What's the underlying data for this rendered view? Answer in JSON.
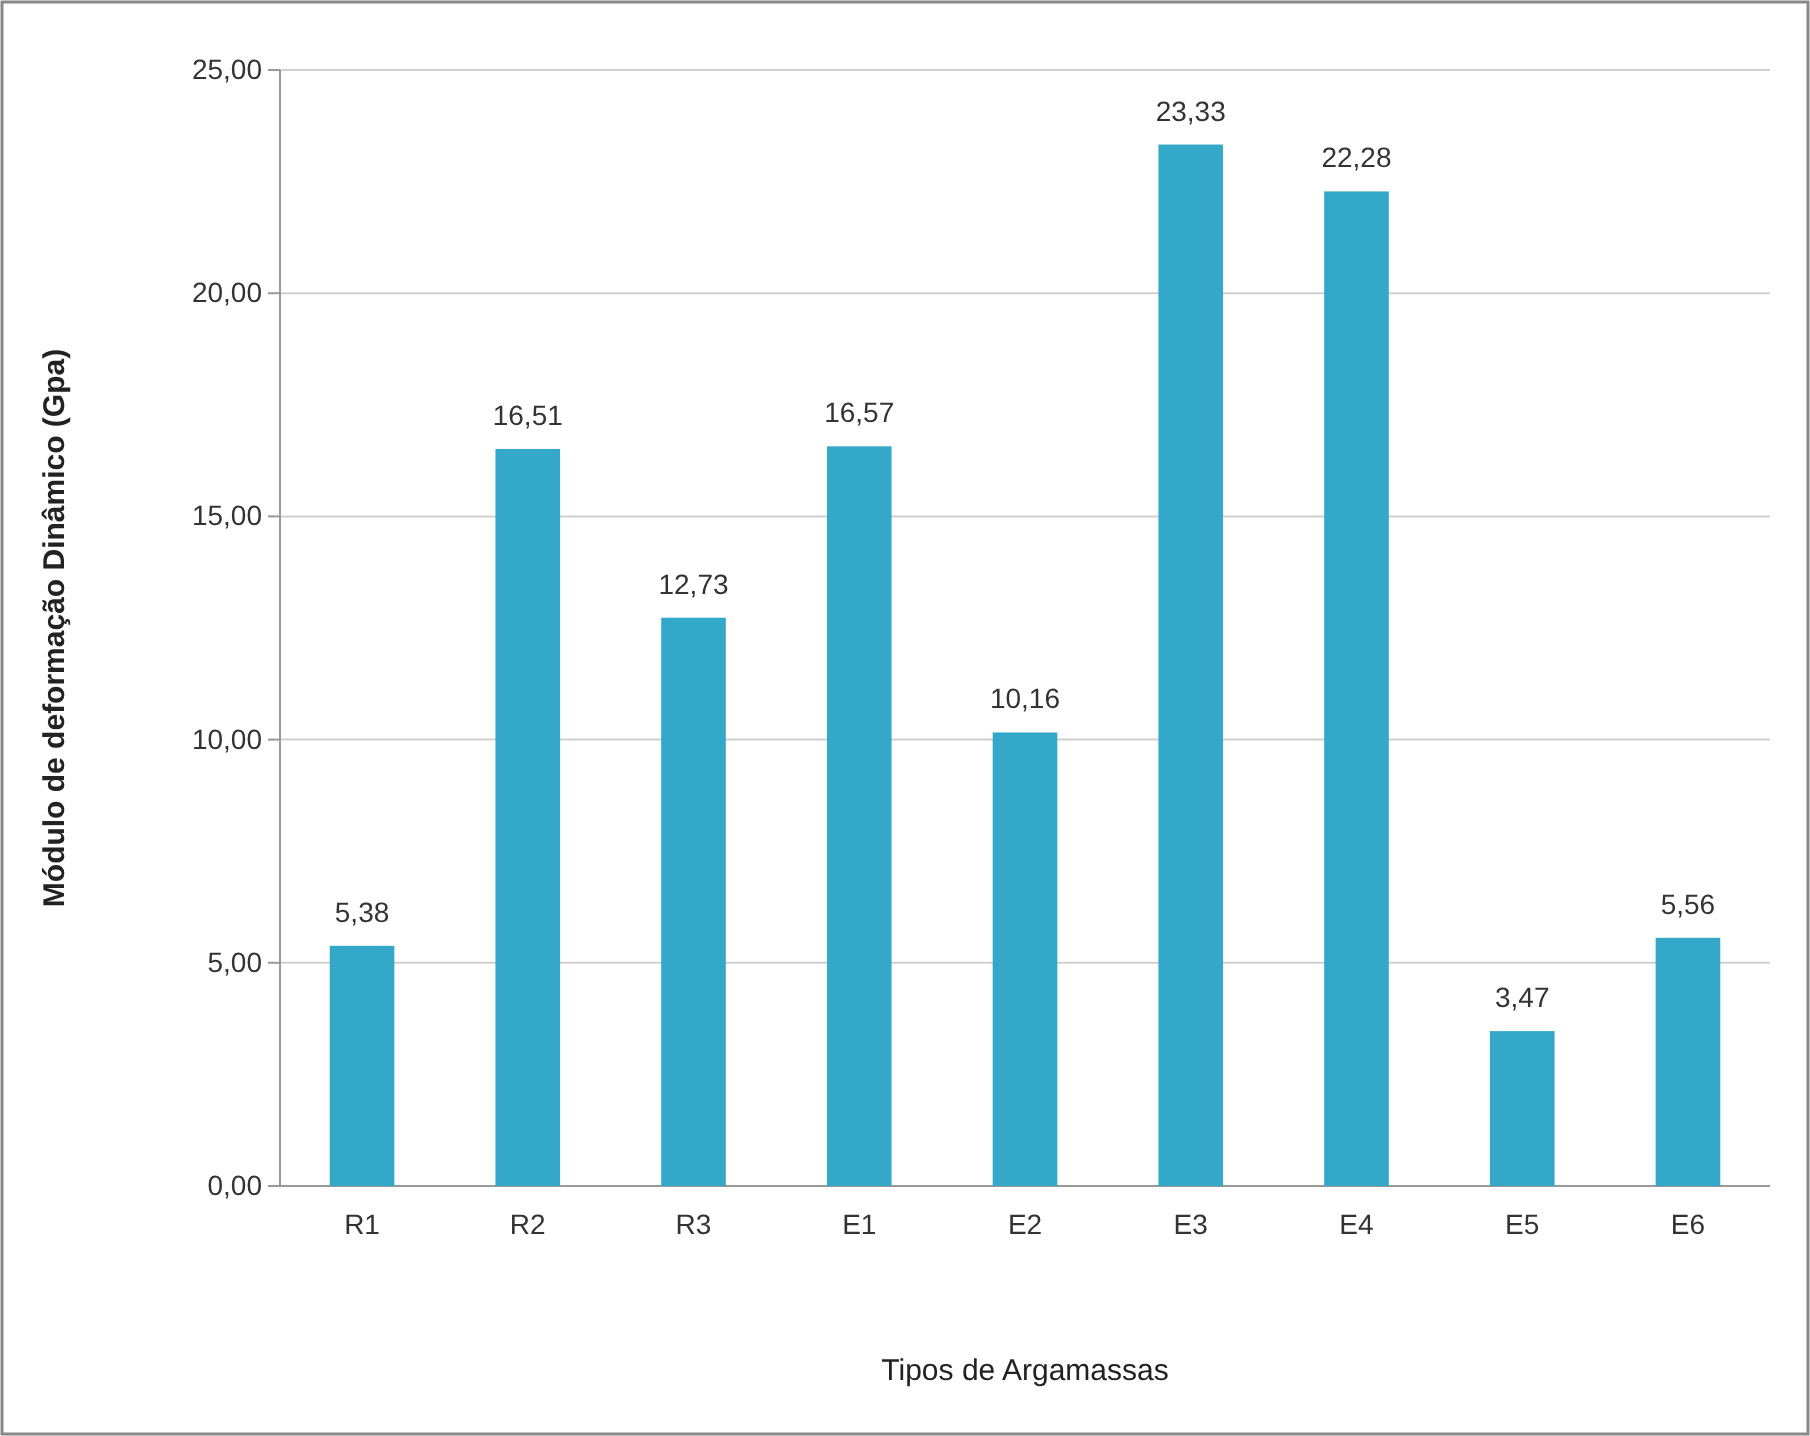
{
  "chart_data": {
    "type": "bar",
    "xlabel": "Tipos de Argamassas",
    "ylabel": "Módulo de deformação Dinâmico (Gpa)",
    "categories": [
      "R1",
      "R2",
      "R3",
      "E1",
      "E2",
      "E3",
      "E4",
      "E5",
      "E6"
    ],
    "values": [
      5.38,
      16.51,
      12.73,
      16.57,
      10.16,
      23.33,
      22.28,
      3.47,
      5.56
    ],
    "value_labels": [
      "5,38",
      "16,51",
      "12,73",
      "16,57",
      "10,16",
      "23,33",
      "22,28",
      "3,47",
      "5,56"
    ],
    "color": "#33a8c9",
    "ylim": [
      0,
      25
    ],
    "yticks": [
      {
        "value": 0,
        "label": "0,00"
      },
      {
        "value": 5,
        "label": "5,00"
      },
      {
        "value": 10,
        "label": "10,00"
      },
      {
        "value": 15,
        "label": "15,00"
      },
      {
        "value": 20,
        "label": "20,00"
      },
      {
        "value": 25,
        "label": "25,00"
      }
    ],
    "grid": "y"
  }
}
